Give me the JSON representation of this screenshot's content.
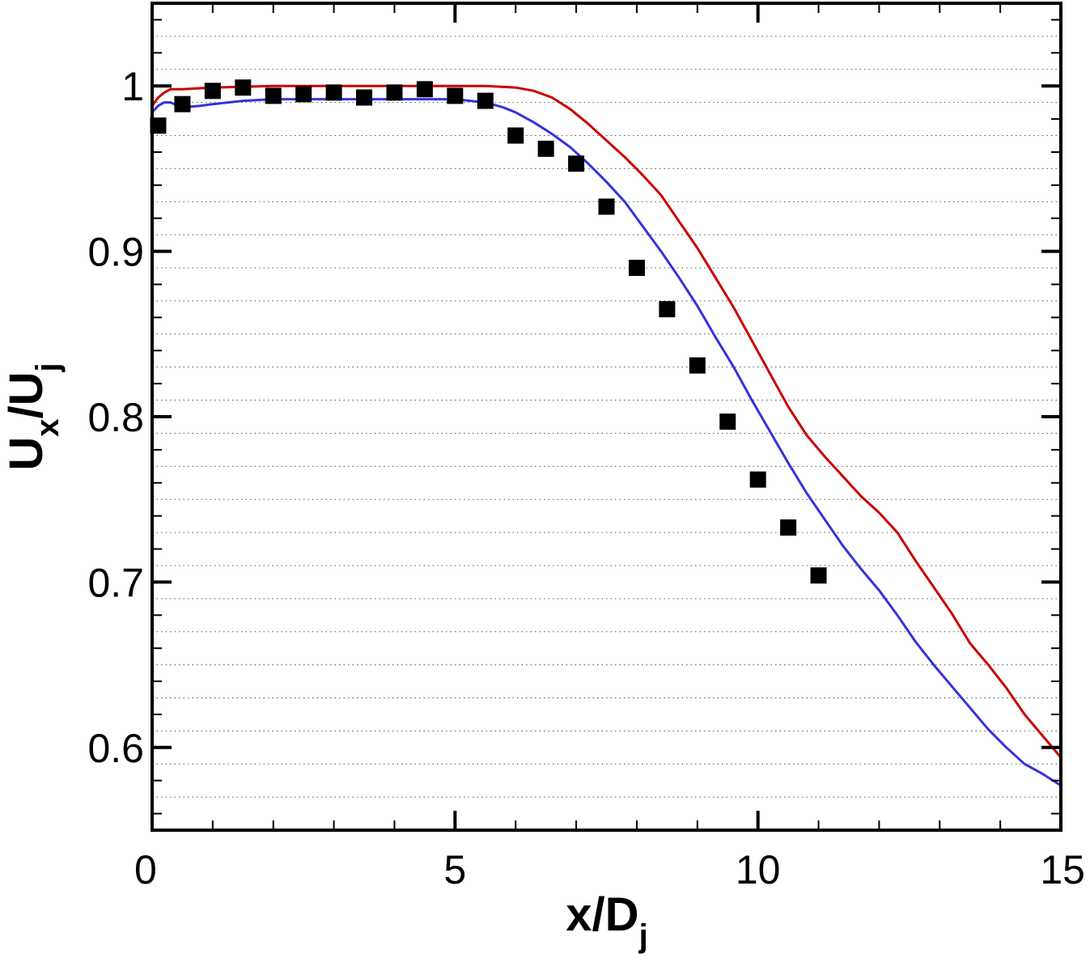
{
  "chart_data": {
    "type": "line",
    "xlabel": {
      "main": "x/D",
      "sub": "j"
    },
    "ylabel": {
      "main1": "U",
      "sub1": "x",
      "main2": "/U",
      "sub2": "j"
    },
    "xlim": [
      0,
      15
    ],
    "ylim": [
      0.55,
      1.05
    ],
    "x_ticks": [
      {
        "value": 0,
        "label": "0"
      },
      {
        "value": 5,
        "label": "5"
      },
      {
        "value": 10,
        "label": "10"
      },
      {
        "value": 15,
        "label": "15"
      }
    ],
    "y_ticks": [
      {
        "value": 0.6,
        "label": "0.6"
      },
      {
        "value": 0.7,
        "label": "0.7"
      },
      {
        "value": 0.8,
        "label": "0.8"
      },
      {
        "value": 0.9,
        "label": "0.9"
      },
      {
        "value": 1.0,
        "label": "1"
      }
    ],
    "grid": {
      "major_y": true,
      "minor_y_dotted": true,
      "minor_step": 0.02
    },
    "series": [
      {
        "style": "line",
        "color": "#cc0000",
        "x": [
          0,
          0.1,
          0.2,
          0.3,
          0.5,
          1,
          2,
          3,
          4,
          5,
          5.5,
          6,
          6.3,
          6.6,
          6.9,
          7.2,
          7.5,
          7.8,
          8.1,
          8.4,
          8.7,
          9,
          9.3,
          9.6,
          9.9,
          10.2,
          10.5,
          10.8,
          11.1,
          11.4,
          11.7,
          12,
          12.3,
          12.6,
          12.9,
          13.2,
          13.5,
          13.8,
          14.1,
          14.4,
          14.7,
          15
        ],
        "y": [
          0.988,
          0.993,
          0.996,
          0.998,
          0.998,
          0.999,
          1.0,
          1.0,
          1.0,
          1.0,
          1.0,
          0.999,
          0.997,
          0.993,
          0.986,
          0.977,
          0.967,
          0.957,
          0.946,
          0.934,
          0.918,
          0.902,
          0.884,
          0.866,
          0.846,
          0.826,
          0.806,
          0.789,
          0.776,
          0.764,
          0.752,
          0.742,
          0.73,
          0.713,
          0.697,
          0.681,
          0.663,
          0.65,
          0.636,
          0.62,
          0.607,
          0.594
        ]
      },
      {
        "style": "line",
        "color": "#3333dd",
        "x": [
          0,
          0.1,
          0.2,
          0.3,
          0.5,
          0.8,
          1,
          1.5,
          2,
          3,
          4,
          5,
          5.5,
          5.8,
          6,
          6.3,
          6.6,
          6.9,
          7.2,
          7.5,
          7.8,
          8.1,
          8.4,
          8.7,
          9,
          9.3,
          9.6,
          9.9,
          10.2,
          10.5,
          10.8,
          11.1,
          11.4,
          11.7,
          12,
          12.3,
          12.6,
          12.9,
          13.2,
          13.5,
          13.8,
          14.1,
          14.4,
          14.7,
          15
        ],
        "y": [
          0.984,
          0.988,
          0.99,
          0.99,
          0.987,
          0.988,
          0.989,
          0.991,
          0.992,
          0.992,
          0.992,
          0.992,
          0.99,
          0.987,
          0.984,
          0.978,
          0.971,
          0.963,
          0.953,
          0.942,
          0.93,
          0.915,
          0.9,
          0.884,
          0.867,
          0.848,
          0.83,
          0.81,
          0.791,
          0.772,
          0.754,
          0.738,
          0.722,
          0.708,
          0.695,
          0.68,
          0.664,
          0.65,
          0.637,
          0.624,
          0.611,
          0.6,
          0.59,
          0.584,
          0.577
        ]
      },
      {
        "style": "marker",
        "marker": "square",
        "color": "#000000",
        "x": [
          0.1,
          0.5,
          1.0,
          1.5,
          2.0,
          2.5,
          3.0,
          3.5,
          4.0,
          4.5,
          5.0,
          5.5,
          6.0,
          6.5,
          7.0,
          7.5,
          8.0,
          8.5,
          9.0,
          9.5,
          10.0,
          10.5,
          11.0
        ],
        "y": [
          0.976,
          0.989,
          0.997,
          0.999,
          0.994,
          0.995,
          0.996,
          0.993,
          0.996,
          0.998,
          0.994,
          0.991,
          0.97,
          0.962,
          0.953,
          0.927,
          0.89,
          0.865,
          0.831,
          0.797,
          0.762,
          0.733,
          0.704
        ]
      }
    ]
  }
}
